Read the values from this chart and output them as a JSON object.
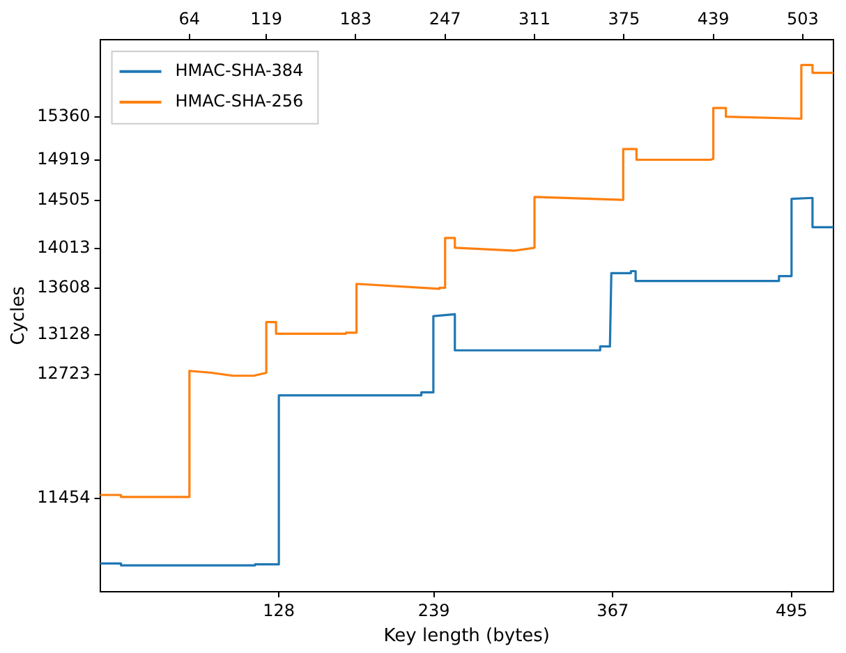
{
  "chart_data": {
    "type": "line",
    "xlabel": "Key length (bytes)",
    "ylabel": "Cycles",
    "xlim": [
      0,
      525
    ],
    "xticks": [
      128,
      239,
      367,
      495
    ],
    "x2lim": [
      0,
      525
    ],
    "x2ticks": [
      64,
      119,
      183,
      247,
      311,
      375,
      439,
      503
    ],
    "ylim": [
      10500,
      16150
    ],
    "yticks": [
      11454,
      12723,
      13128,
      13608,
      14013,
      14505,
      14919,
      15360
    ],
    "grid": false,
    "legend": "top left",
    "marker": "none",
    "line_style": "solid",
    "series": [
      {
        "name": "HMAC-SHA-384",
        "color": "#1f77b4",
        "x": [
          0,
          15,
          15,
          111,
          111,
          128,
          128,
          230,
          230,
          238.6,
          238.6,
          254,
          254,
          358,
          358,
          365,
          366,
          380,
          380,
          383.4,
          383.4,
          486,
          486,
          495,
          495,
          510,
          510,
          525
        ],
        "values": [
          10790,
          10790,
          10770,
          10770,
          10780,
          10780,
          12510,
          12510,
          12540,
          12540,
          13320,
          13340,
          12970,
          12970,
          13010,
          13010,
          13760,
          13760,
          13780,
          13780,
          13680,
          13680,
          13730,
          13730,
          14520,
          14530,
          14230,
          14230
        ]
      },
      {
        "name": "HMAC-SHA-256",
        "color": "#ff7f0e",
        "x": [
          0,
          15,
          15,
          64,
          64,
          80,
          95,
          110,
          119,
          119,
          126,
          126,
          176,
          176,
          183.6,
          183.6,
          243,
          243,
          247,
          247,
          254,
          254,
          297,
          311,
          311,
          374.5,
          374.5,
          384,
          384,
          437,
          439,
          439,
          448,
          448,
          502,
          502,
          510,
          510,
          525
        ],
        "values": [
          11490,
          11490,
          11470,
          11470,
          12760,
          12740,
          12710,
          12710,
          12740,
          13260,
          13260,
          13140,
          13140,
          13150,
          13150,
          13650,
          13600,
          13610,
          13610,
          14120,
          14120,
          14020,
          13990,
          14020,
          14540,
          14510,
          15030,
          15030,
          14920,
          14920,
          14930,
          15450,
          15450,
          15360,
          15340,
          15890,
          15890,
          15810,
          15810
        ]
      }
    ]
  }
}
